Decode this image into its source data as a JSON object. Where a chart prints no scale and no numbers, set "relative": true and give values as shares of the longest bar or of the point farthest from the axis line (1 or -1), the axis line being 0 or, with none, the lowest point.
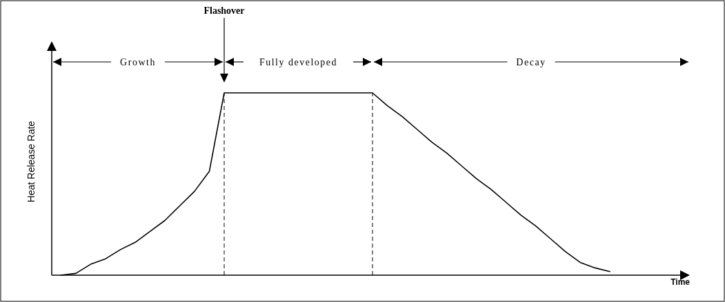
{
  "chart_data": {
    "type": "line",
    "relative": true,
    "ylabel": "Heat Release Rate",
    "marker": "none",
    "line_style": "solid",
    "categories": [
      null,
      null,
      null,
      null,
      null,
      null,
      null,
      null,
      null,
      null,
      null,
      null,
      null,
      null,
      null,
      null,
      null,
      null,
      null,
      null,
      null,
      null,
      null,
      null,
      null,
      null,
      null,
      null,
      null,
      null,
      null,
      null,
      null,
      null,
      null,
      null,
      null,
      null
    ],
    "series": [
      {
        "color": "#000000",
        "values": [
          0,
          0.01,
          0.06,
          0.09,
          0.14,
          0.18,
          0.24,
          0.3,
          0.38,
          0.46,
          0.57,
          1,
          1,
          1,
          1,
          1,
          1,
          1,
          1,
          1,
          1,
          1,
          0.93,
          0.87,
          0.8,
          0.73,
          0.67,
          0.6,
          0.53,
          0.47,
          0.4,
          0.33,
          0.27,
          0.2,
          0.13,
          0.07,
          0.04,
          0.02
        ]
      }
    ],
    "annotations": [
      "Flashover",
      "Growth",
      "Fully developed",
      "Decay",
      "Time"
    ]
  }
}
